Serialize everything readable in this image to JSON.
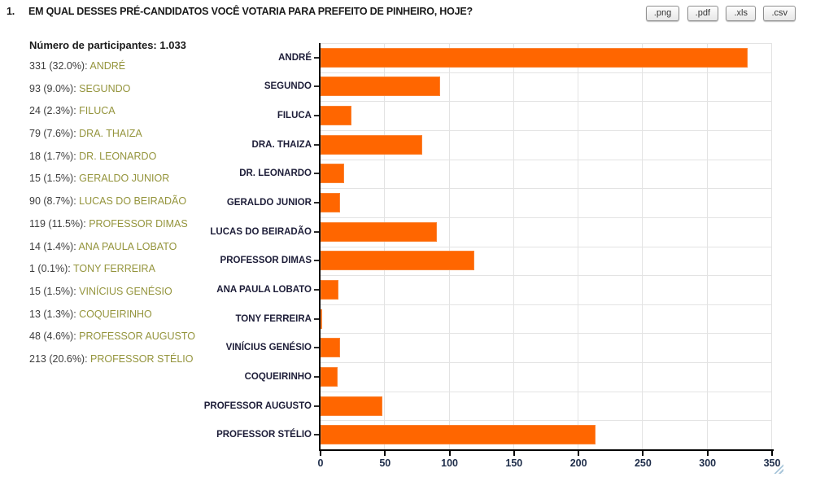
{
  "question": {
    "number": "1.",
    "title": "EM QUAL DESSES PRÉ-CANDIDATOS VOCÊ VOTARIA PARA PREFEITO DE PINHEIRO, HOJE?"
  },
  "export_buttons": [
    ".png",
    ".pdf",
    ".xls",
    ".csv"
  ],
  "stats": {
    "participants_label": "Número de participantes: 1.033",
    "items": [
      {
        "count": "331 (32.0%):",
        "name": "ANDRÉ"
      },
      {
        "count": "93 (9.0%):",
        "name": "SEGUNDO"
      },
      {
        "count": "24 (2.3%):",
        "name": "FILUCA"
      },
      {
        "count": "79 (7.6%):",
        "name": "DRA. THAIZA"
      },
      {
        "count": "18 (1.7%):",
        "name": "DR. LEONARDO"
      },
      {
        "count": "15 (1.5%):",
        "name": "GERALDO JUNIOR"
      },
      {
        "count": "90 (8.7%):",
        "name": "LUCAS DO BEIRADÃO"
      },
      {
        "count": "119 (11.5%):",
        "name": "PROFESSOR DIMAS"
      },
      {
        "count": "14 (1.4%):",
        "name": "ANA PAULA LOBATO"
      },
      {
        "count": "1 (0.1%):",
        "name": "TONY FERREIRA"
      },
      {
        "count": "15 (1.5%):",
        "name": "VINÍCIUS GENÉSIO"
      },
      {
        "count": "13 (1.3%):",
        "name": "COQUEIRINHO"
      },
      {
        "count": "48 (4.6%):",
        "name": "PROFESSOR AUGUSTO"
      },
      {
        "count": "213 (20.6%):",
        "name": "PROFESSOR STÉLIO"
      }
    ]
  },
  "chart_data": {
    "type": "bar",
    "orientation": "horizontal",
    "title": "",
    "xlabel": "",
    "ylabel": "",
    "categories": [
      "ANDRÉ",
      "SEGUNDO",
      "FILUCA",
      "DRA. THAIZA",
      "DR. LEONARDO",
      "GERALDO JUNIOR",
      "LUCAS DO BEIRADÃO",
      "PROFESSOR DIMAS",
      "ANA PAULA LOBATO",
      "TONY FERREIRA",
      "VINÍCIUS GENÉSIO",
      "COQUEIRINHO",
      "PROFESSOR AUGUSTO",
      "PROFESSOR STÉLIO"
    ],
    "values": [
      331,
      93,
      24,
      79,
      18,
      15,
      90,
      119,
      14,
      1,
      15,
      13,
      48,
      213
    ],
    "percentages": [
      32.0,
      9.0,
      2.3,
      7.6,
      1.7,
      1.5,
      8.7,
      11.5,
      1.4,
      0.1,
      1.5,
      1.3,
      4.6,
      20.6
    ],
    "xlim": [
      0,
      350
    ],
    "xticks": [
      0,
      50,
      100,
      150,
      200,
      250,
      300,
      350
    ],
    "grid": true,
    "legend": false,
    "bar_color": "#FF6600",
    "total_participants": "1.033"
  },
  "colors": {
    "bar": "#FF6600",
    "answer_text": "#94943C",
    "axis": "#000000",
    "gridline": "#e3e3e3"
  },
  "icons": {
    "resize_grip": "resize-grip"
  }
}
